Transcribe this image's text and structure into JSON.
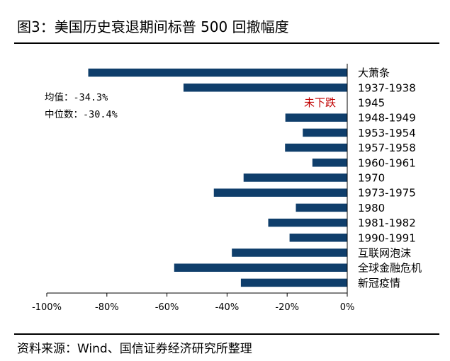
{
  "title": "图3：美国历史衰退期间标普 500 回撤幅度",
  "source": "资料来源：Wind、国信证券经济研究所整理",
  "chart_data": {
    "type": "bar",
    "orientation": "horizontal",
    "categories": [
      "大萧条",
      "1937-1938",
      "1945",
      "1948-1949",
      "1953-1954",
      "1957-1958",
      "1960-1961",
      "1970",
      "1973-1975",
      "1980",
      "1981-1982",
      "1990-1991",
      "互联网泡沫",
      "全球金融危机",
      "新冠疫情"
    ],
    "values": [
      -86.2,
      -54.5,
      null,
      -20.6,
      -14.8,
      -20.7,
      -11.6,
      -34.5,
      -44.4,
      -17.1,
      -26.3,
      -19.2,
      -38.4,
      -57.6,
      -35.4
    ],
    "xlim": [
      -100,
      0
    ],
    "xticks": [
      -100,
      -80,
      -60,
      -40,
      -20,
      0
    ],
    "xtick_labels": [
      "-100%",
      "-80%",
      "-60%",
      "-40%",
      "-20%",
      "0%"
    ],
    "bar_color": "#0f3e6b",
    "grid": false,
    "annotations": {
      "mean": "均值：-34.3%",
      "median": "中位数：-30.4%",
      "no_decline": "未下跌",
      "no_decline_color": "#c00000"
    }
  }
}
